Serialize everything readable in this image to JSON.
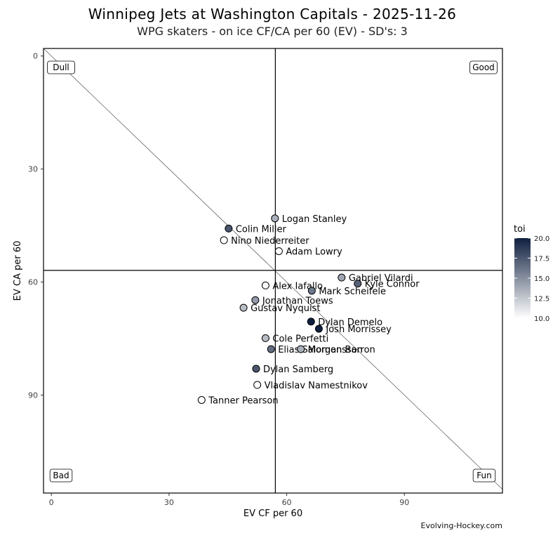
{
  "title": "Winnipeg Jets at Washington Capitals - 2025-11-26",
  "subtitle": "WPG skaters - on ice CF/CA per 60 (EV) - SD's: 3",
  "credit": "Evolving-Hockey.com",
  "chart_data": {
    "type": "scatter",
    "xlabel": "EV CF per 60",
    "ylabel": "EV CA per 60",
    "xlim": [
      -2,
      115
    ],
    "ylim": [
      -2,
      116
    ],
    "y_reversed": true,
    "x_ticks": [
      0,
      30,
      60,
      90
    ],
    "y_ticks": [
      0,
      30,
      60,
      90
    ],
    "reference_lines": {
      "vline_x": 57.1,
      "hline_y": 56.9,
      "diagonal": "x = y"
    },
    "quadrant_labels": {
      "top_left": "Dull",
      "top_right": "Good",
      "bottom_left": "Bad",
      "bottom_right": "Fun"
    },
    "legend": {
      "title": "toi",
      "min": 10.0,
      "max": 20.0,
      "ticks": [
        "20.0",
        "17.5",
        "15.0",
        "12.5",
        "10.0"
      ],
      "color_low": "#ffffff",
      "color_high": "#0f1f3f",
      "placement": "right"
    },
    "points": [
      {
        "name": "Logan Stanley",
        "x": 57.0,
        "y": 43.1,
        "toi": 13.5
      },
      {
        "name": "Colin Miller",
        "x": 45.2,
        "y": 45.8,
        "toi": 17.5
      },
      {
        "name": "Nino Niederreiter",
        "x": 44.0,
        "y": 48.9,
        "toi": 10.0
      },
      {
        "name": "Adam Lowry",
        "x": 58.0,
        "y": 51.8,
        "toi": 10.2
      },
      {
        "name": "Gabriel Vilardi",
        "x": 74.0,
        "y": 58.8,
        "toi": 14.0
      },
      {
        "name": "Kyle Connor",
        "x": 78.1,
        "y": 60.4,
        "toi": 17.0
      },
      {
        "name": "Alex Iafallo",
        "x": 54.6,
        "y": 60.9,
        "toi": 10.3
      },
      {
        "name": "Mark Scheifele",
        "x": 66.4,
        "y": 62.3,
        "toi": 16.0
      },
      {
        "name": "Jonathan Toews",
        "x": 52.0,
        "y": 64.8,
        "toi": 14.5
      },
      {
        "name": "Gustav Nyquist",
        "x": 49.0,
        "y": 66.8,
        "toi": 13.0
      },
      {
        "name": "Dylan Demelo",
        "x": 66.2,
        "y": 70.5,
        "toi": 20.0
      },
      {
        "name": "Josh Morrissey",
        "x": 68.2,
        "y": 72.4,
        "toi": 20.0
      },
      {
        "name": "Cole Perfetti",
        "x": 54.6,
        "y": 74.9,
        "toi": 13.0
      },
      {
        "name": "Elias Salomonsson",
        "x": 56.0,
        "y": 77.8,
        "toi": 16.5
      },
      {
        "name": "Morgan Barron",
        "x": 63.6,
        "y": 77.8,
        "toi": 13.5
      },
      {
        "name": "Dylan Samberg",
        "x": 52.2,
        "y": 83.0,
        "toi": 17.5
      },
      {
        "name": "Vladislav Namestnikov",
        "x": 52.5,
        "y": 87.3,
        "toi": 10.0
      },
      {
        "name": "Tanner Pearson",
        "x": 38.3,
        "y": 91.3,
        "toi": 10.0
      }
    ]
  }
}
